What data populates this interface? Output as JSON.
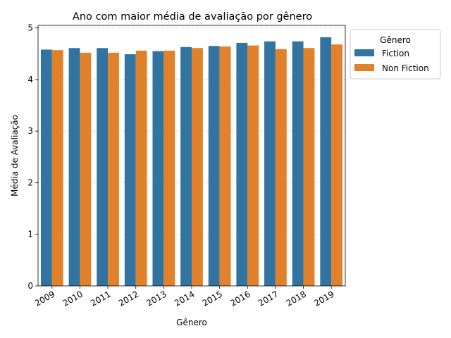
{
  "chart_data": {
    "type": "bar",
    "title": "Ano com maior média de avaliação por gênero",
    "xlabel": "Gênero",
    "ylabel": "Média de Avaliação",
    "categories": [
      "2009",
      "2010",
      "2011",
      "2012",
      "2013",
      "2014",
      "2015",
      "2016",
      "2017",
      "2018",
      "2019"
    ],
    "series": [
      {
        "name": "Fiction",
        "color": "#3274a1",
        "values": [
          4.58,
          4.61,
          4.61,
          4.49,
          4.55,
          4.63,
          4.65,
          4.71,
          4.74,
          4.74,
          4.82
        ]
      },
      {
        "name": "Non Fiction",
        "color": "#e1812c",
        "values": [
          4.57,
          4.52,
          4.52,
          4.56,
          4.56,
          4.61,
          4.64,
          4.66,
          4.59,
          4.61,
          4.68
        ]
      }
    ],
    "ylim": [
      0,
      5.05
    ],
    "yticks": [
      0,
      1,
      2,
      3,
      4,
      5
    ],
    "xtick_rotation": 30,
    "grid": {
      "y": true,
      "style": "dashed"
    },
    "legend": {
      "title": "Gênero",
      "placement": "upper-right-outside"
    }
  }
}
